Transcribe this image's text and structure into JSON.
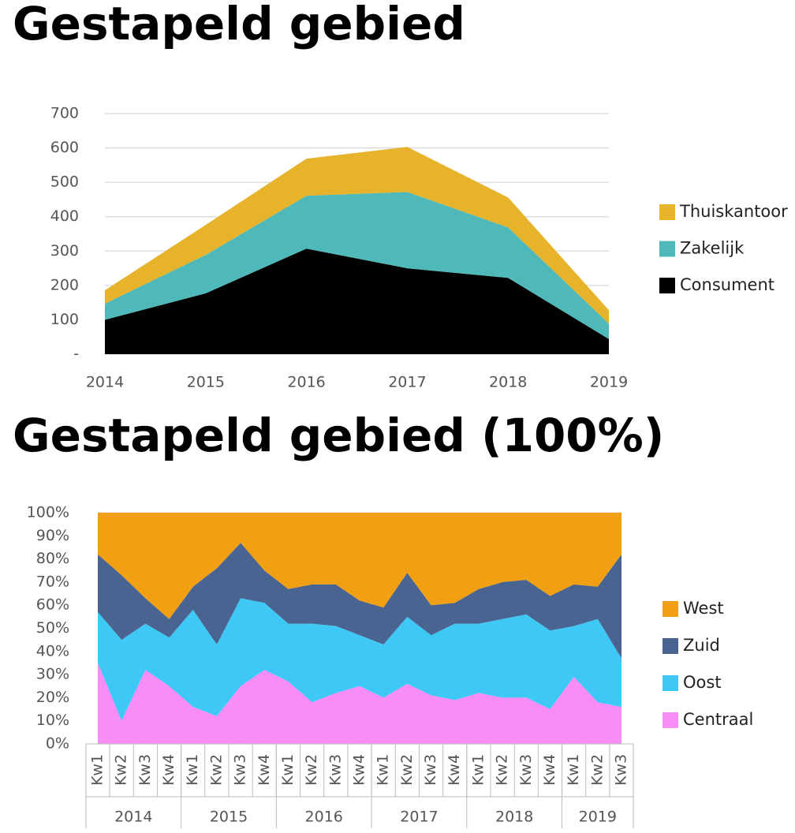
{
  "chart_data": [
    {
      "type": "area",
      "stacked": true,
      "title": "Gestapeld gebied",
      "categories": [
        "2014",
        "2015",
        "2016",
        "2017",
        "2018",
        "2019"
      ],
      "series": [
        {
          "name": "Consument",
          "color": "#000000",
          "values": [
            100,
            177,
            307,
            250,
            222,
            44
          ]
        },
        {
          "name": "Zakelijk",
          "color": "#4fb8b8",
          "values": [
            47,
            112,
            154,
            222,
            147,
            45
          ]
        },
        {
          "name": "Thuiskantoor",
          "color": "#e6b32b",
          "values": [
            39,
            87,
            108,
            131,
            87,
            39
          ]
        }
      ],
      "ylim": [
        0,
        700
      ],
      "yticks": [
        {
          "value": 0,
          "label": "-"
        },
        100,
        200,
        300,
        400,
        500,
        600,
        700
      ],
      "grid": true,
      "legend": "right"
    },
    {
      "type": "area",
      "stacked": true,
      "title": "Gestapeld gebied (100%)",
      "categories": [
        "Kw1",
        "Kw2",
        "Kw3",
        "Kw4",
        "Kw1",
        "Kw2",
        "Kw3",
        "Kw4",
        "Kw1",
        "Kw2",
        "Kw3",
        "Kw4",
        "Kw1",
        "Kw2",
        "Kw3",
        "Kw4",
        "Kw1",
        "Kw2",
        "Kw3",
        "Kw4",
        "Kw1",
        "Kw2",
        "Kw3"
      ],
      "category_groups": [
        {
          "label": "2014",
          "count": 4
        },
        {
          "label": "2015",
          "count": 4
        },
        {
          "label": "2016",
          "count": 4
        },
        {
          "label": "2017",
          "count": 4
        },
        {
          "label": "2018",
          "count": 4
        },
        {
          "label": "2019",
          "count": 3
        }
      ],
      "series": [
        {
          "name": "Centraal",
          "color": "#f98cf5",
          "values": [
            35,
            10,
            32,
            25,
            16,
            12,
            25,
            32,
            27,
            18,
            22,
            25,
            20,
            26,
            21,
            19,
            22,
            20,
            20,
            15,
            29,
            18,
            16
          ]
        },
        {
          "name": "Oost",
          "color": "#3ec8f5",
          "values": [
            22,
            35,
            20,
            21,
            42,
            31,
            38,
            29,
            25,
            34,
            29,
            22,
            23,
            29,
            26,
            33,
            30,
            34,
            36,
            34,
            22,
            36,
            21
          ]
        },
        {
          "name": "Zuid",
          "color": "#4a6491",
          "values": [
            25,
            28,
            11,
            8,
            10,
            33,
            24,
            14,
            15,
            17,
            18,
            15,
            16,
            19,
            13,
            9,
            15,
            16,
            15,
            15,
            18,
            14,
            45
          ]
        },
        {
          "name": "West",
          "color": "#f0a012",
          "values": [
            18,
            27,
            37,
            46,
            32,
            24,
            13,
            25,
            33,
            31,
            31,
            38,
            41,
            26,
            40,
            39,
            33,
            30,
            29,
            36,
            31,
            32,
            18
          ]
        }
      ],
      "ylim": [
        0,
        100
      ],
      "yticks": [
        {
          "value": 0,
          "label": "0%"
        },
        {
          "value": 10,
          "label": "10%"
        },
        {
          "value": 20,
          "label": "20%"
        },
        {
          "value": 30,
          "label": "30%"
        },
        {
          "value": 40,
          "label": "40%"
        },
        {
          "value": 50,
          "label": "50%"
        },
        {
          "value": 60,
          "label": "60%"
        },
        {
          "value": 70,
          "label": "70%"
        },
        {
          "value": 80,
          "label": "80%"
        },
        {
          "value": 90,
          "label": "90%"
        },
        {
          "value": 100,
          "label": "100%"
        }
      ],
      "grid": true,
      "legend": "right"
    }
  ]
}
